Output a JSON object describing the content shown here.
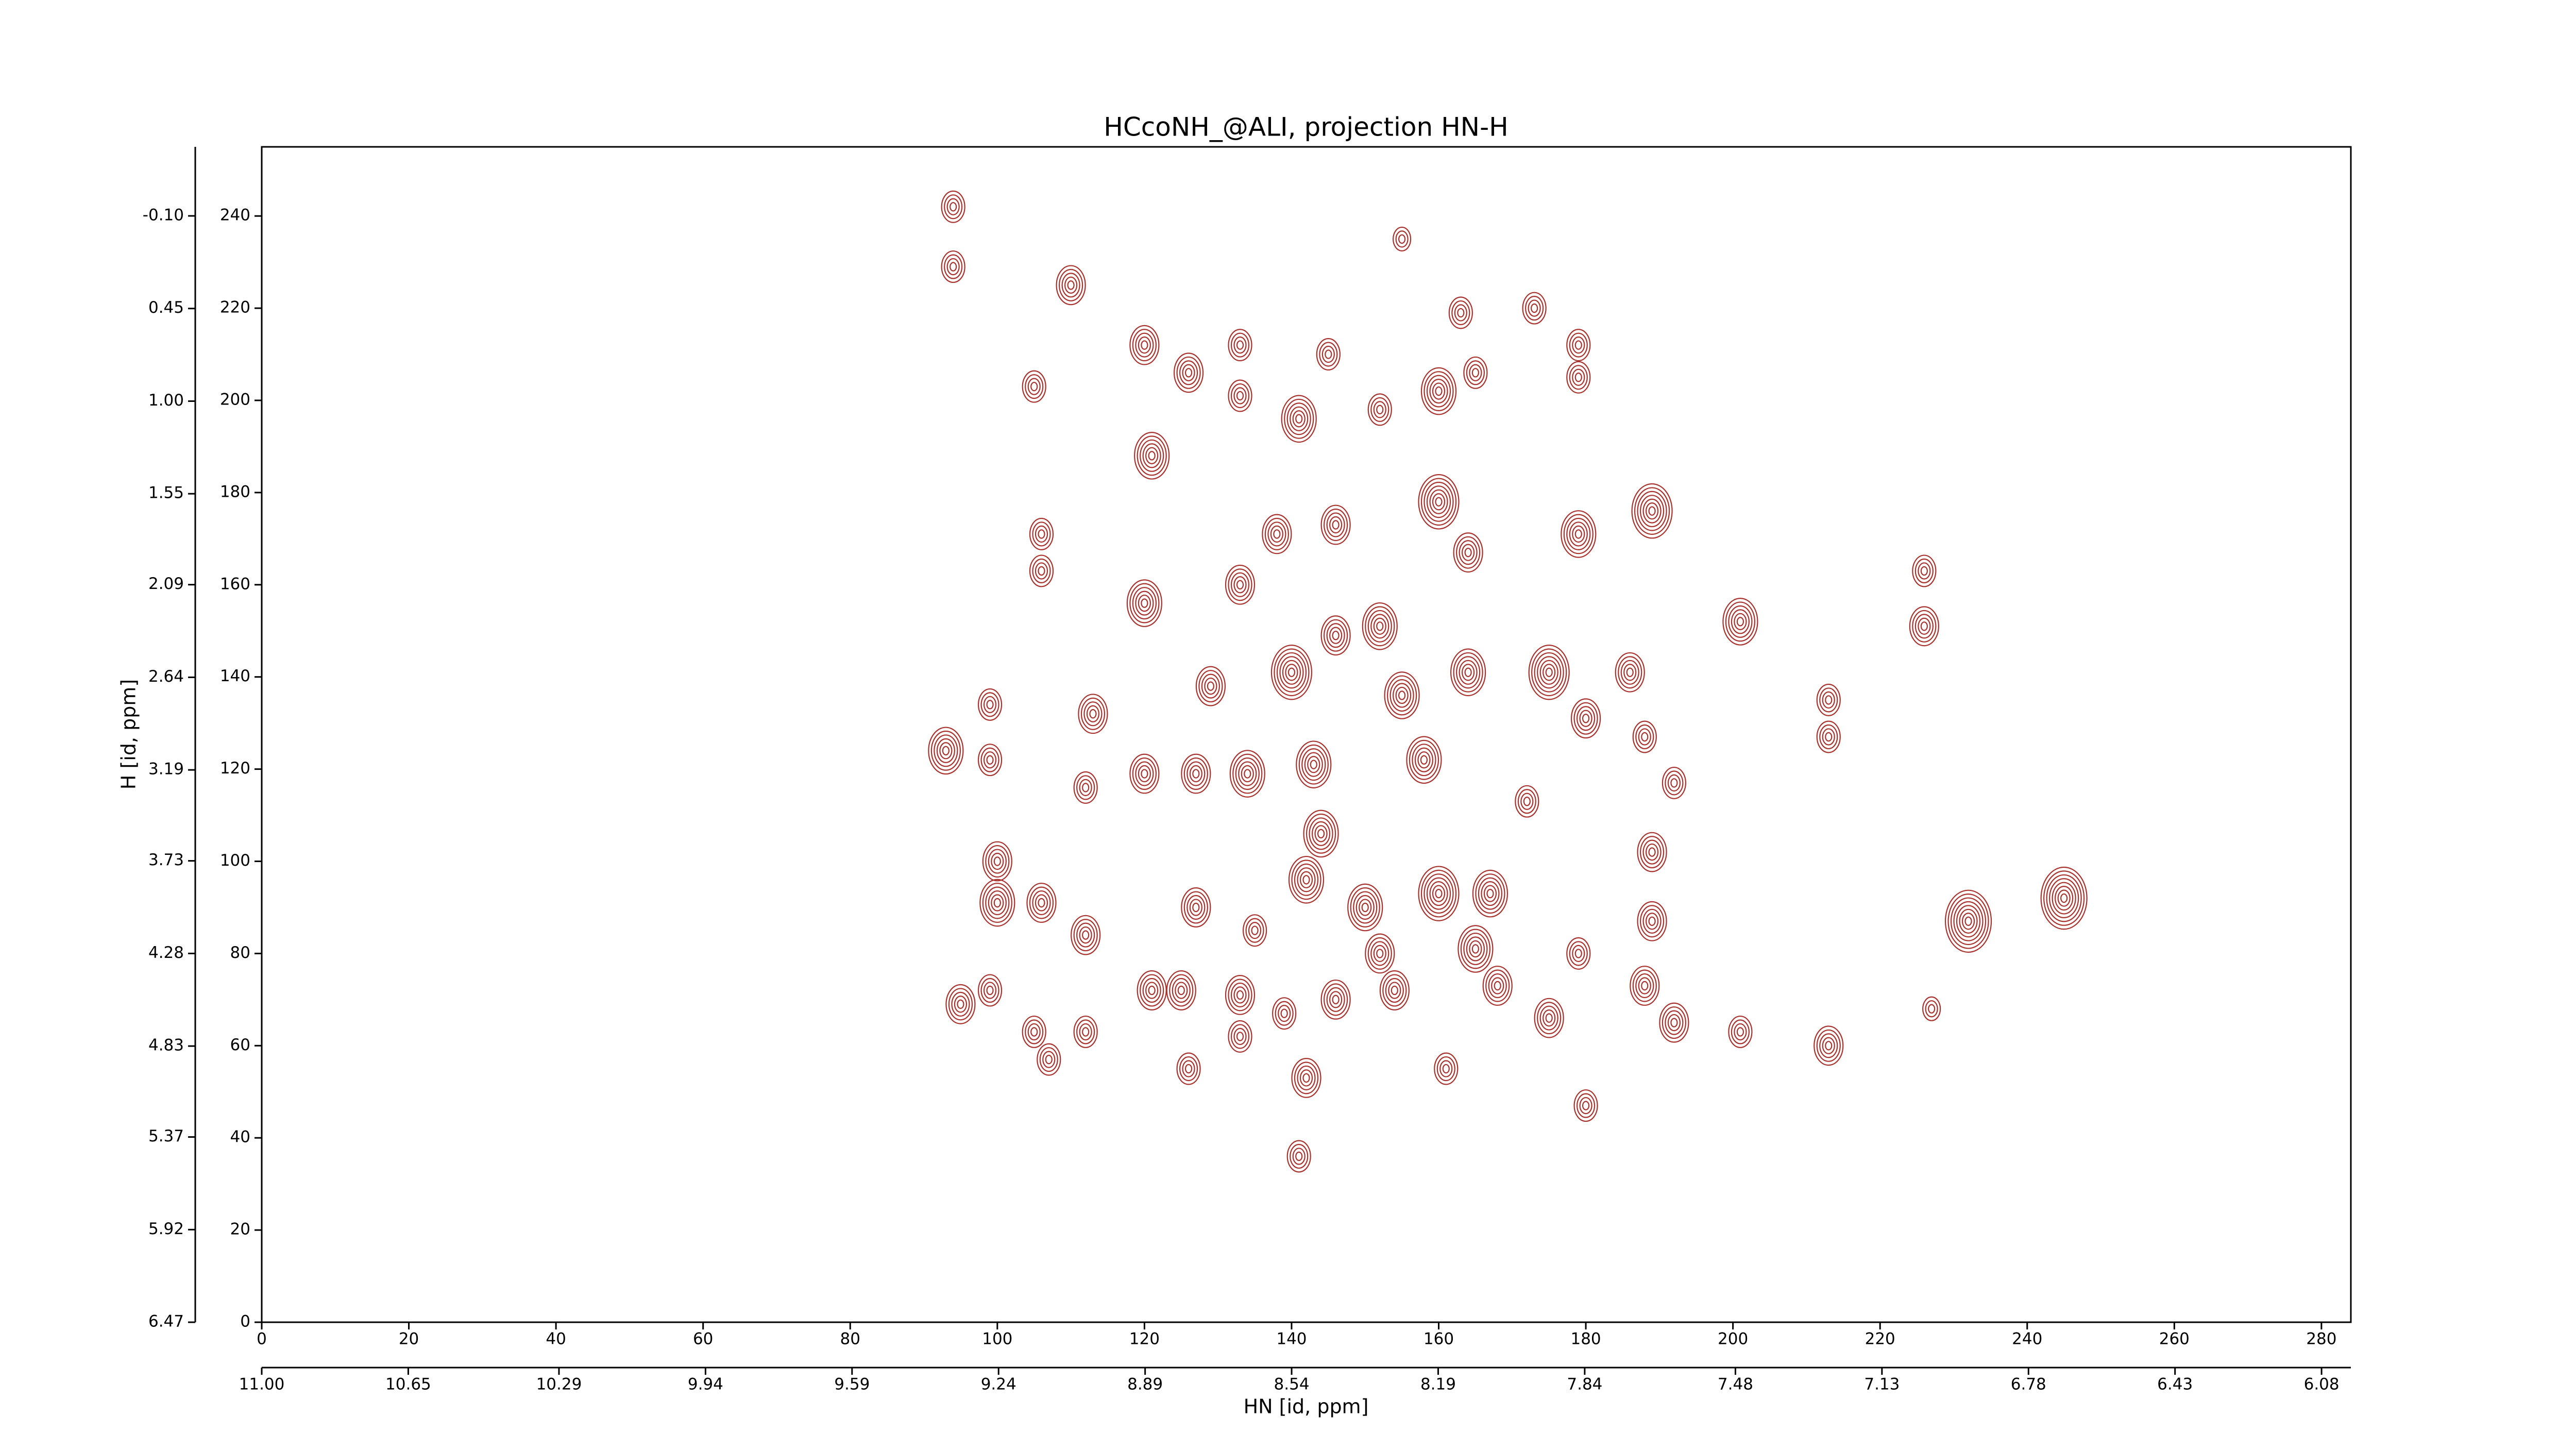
{
  "chart_data": {
    "type": "contour",
    "title": "HCcoNH_@ALI, projection HN-H",
    "xlabel": "HN [id, ppm]",
    "ylabel": "H [id, ppm]",
    "color": "#a8322d",
    "xlim": [
      0,
      284
    ],
    "xticks": [
      0,
      20,
      40,
      60,
      80,
      100,
      120,
      140,
      160,
      180,
      200,
      220,
      240,
      260,
      280
    ],
    "ylim": [
      0,
      255
    ],
    "yticks": [
      0,
      20,
      40,
      60,
      80,
      100,
      120,
      140,
      160,
      180,
      200,
      220,
      240
    ],
    "x2lim": [
      11.0,
      6.01
    ],
    "x2ticks": [
      {
        "value": 11.0,
        "label": "11.00"
      },
      10.65,
      10.29,
      9.94,
      9.59,
      9.24,
      8.89,
      8.54,
      8.19,
      7.84,
      7.48,
      7.13,
      6.78,
      6.43,
      6.08
    ],
    "y2lim": [
      6.47,
      -0.51
    ],
    "y2ticks": [
      6.47,
      5.92,
      5.37,
      4.83,
      4.28,
      3.73,
      3.19,
      2.64,
      2.09,
      1.55,
      {
        "value": 1.0,
        "label": "1.00"
      },
      0.45,
      {
        "value": -0.1,
        "label": "-0.10"
      }
    ],
    "peaks": {
      "x": [
        94,
        94,
        110,
        105,
        120,
        126,
        133,
        133,
        145,
        141,
        152,
        160,
        165,
        173,
        179,
        179,
        121,
        120,
        106,
        106,
        133,
        138,
        146,
        152,
        146,
        160,
        164,
        179,
        189,
        201,
        226,
        226,
        175,
        186,
        180,
        188,
        140,
        129,
        155,
        164,
        213,
        213,
        93,
        99,
        99,
        113,
        112,
        120,
        127,
        134,
        143,
        158,
        172,
        192,
        100,
        100,
        106,
        112,
        127,
        135,
        144,
        142,
        150,
        160,
        167,
        165,
        152,
        179,
        189,
        189,
        232,
        245,
        95,
        99,
        105,
        107,
        112,
        121,
        125,
        133,
        139,
        133,
        146,
        154,
        168,
        175,
        188,
        192,
        201,
        213,
        227,
        161,
        142,
        180,
        141,
        126,
        155,
        163
      ],
      "y": [
        242,
        229,
        225,
        203,
        212,
        206,
        212,
        201,
        210,
        196,
        198,
        202,
        206,
        220,
        212,
        205,
        188,
        156,
        171,
        163,
        160,
        171,
        173,
        151,
        149,
        178,
        167,
        171,
        176,
        152,
        163,
        151,
        141,
        141,
        131,
        127,
        141,
        138,
        136,
        141,
        135,
        127,
        124,
        134,
        122,
        132,
        116,
        119,
        119,
        119,
        121,
        122,
        113,
        117,
        100,
        91,
        91,
        84,
        90,
        85,
        106,
        96,
        90,
        93,
        93,
        81,
        80,
        80,
        102,
        87,
        87,
        92,
        69,
        72,
        63,
        57,
        63,
        72,
        72,
        71,
        67,
        62,
        70,
        72,
        73,
        66,
        73,
        65,
        63,
        60,
        68,
        55,
        53,
        47,
        36,
        55,
        235,
        219
      ],
      "levels": [
        4,
        4,
        5,
        4,
        5,
        5,
        4,
        4,
        4,
        6,
        4,
        6,
        4,
        4,
        4,
        4,
        6,
        6,
        4,
        4,
        5,
        5,
        5,
        6,
        5,
        7,
        5,
        6,
        7,
        6,
        4,
        5,
        7,
        5,
        5,
        4,
        7,
        5,
        6,
        6,
        4,
        4,
        6,
        4,
        4,
        5,
        4,
        5,
        5,
        6,
        6,
        6,
        4,
        4,
        5,
        6,
        5,
        5,
        5,
        4,
        6,
        6,
        6,
        7,
        6,
        6,
        5,
        4,
        5,
        5,
        8,
        8,
        5,
        4,
        4,
        4,
        4,
        5,
        5,
        5,
        4,
        4,
        5,
        5,
        5,
        5,
        5,
        5,
        4,
        5,
        3,
        4,
        5,
        4,
        4,
        4,
        3,
        4
      ]
    }
  }
}
